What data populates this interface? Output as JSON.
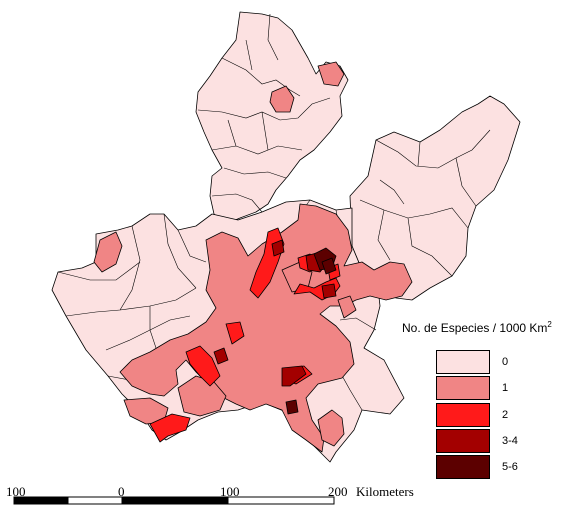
{
  "legend": {
    "title": "No. de Especies / 1000 Km",
    "title_superscript": "2",
    "classes": [
      {
        "label": "0",
        "color": "#fce1e1"
      },
      {
        "label": "1",
        "color": "#f08585"
      },
      {
        "label": "2",
        "color": "#ff1a1a"
      },
      {
        "label": "3-4",
        "color": "#a30000"
      },
      {
        "label": "5-6",
        "color": "#5c0000"
      }
    ]
  },
  "scale_bar": {
    "labels": [
      "100",
      "0",
      "100",
      "200"
    ],
    "unit": "Kilometers"
  },
  "colors": {
    "outline": "#000000",
    "background": "#ffffff"
  }
}
